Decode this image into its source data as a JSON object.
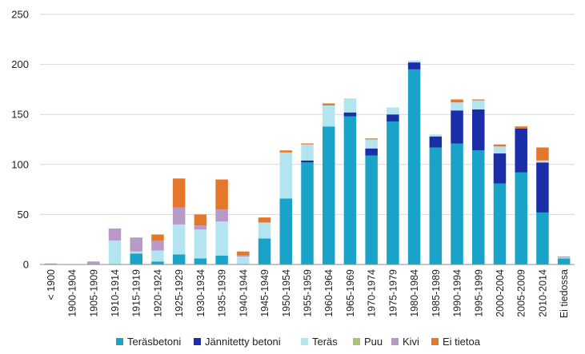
{
  "chart_data": {
    "type": "bar",
    "stacked": true,
    "categories": [
      "< 1900",
      "1900-1904",
      "1905-1909",
      "1910-1914",
      "1915-1919",
      "1920-1924",
      "1925-1929",
      "1930-1934",
      "1935-1939",
      "1940-1944",
      "1945-1949",
      "1950-1954",
      "1955-1959",
      "1960-1964",
      "1965-1969",
      "1970-1974",
      "1975-1979",
      "1980-1984",
      "1985-1989",
      "1990-1994",
      "1995-1999",
      "2000-2004",
      "2005-2009",
      "2010-2014",
      "Ei tiedossa"
    ],
    "series": [
      {
        "name": "Teräsbetoni",
        "color": "#1aa3c8",
        "values": [
          0,
          0,
          0,
          0,
          11,
          3,
          10,
          6,
          9,
          0,
          26,
          66,
          102,
          138,
          148,
          109,
          143,
          195,
          117,
          121,
          114,
          81,
          92,
          52,
          6
        ]
      },
      {
        "name": "Jännitetty betoni",
        "color": "#1a2ea8",
        "values": [
          0,
          0,
          0,
          0,
          0,
          0,
          0,
          0,
          0,
          0,
          0,
          0,
          2,
          0,
          4,
          7,
          7,
          7,
          11,
          33,
          41,
          30,
          44,
          50,
          0
        ]
      },
      {
        "name": "Teräs",
        "color": "#b3e5f1",
        "values": [
          0,
          0,
          0,
          24,
          2,
          11,
          30,
          29,
          34,
          8,
          16,
          46,
          16,
          21,
          14,
          9,
          7,
          2,
          2,
          8,
          9,
          7,
          0,
          2,
          1
        ]
      },
      {
        "name": "Puu",
        "color": "#a9c56f",
        "values": [
          0,
          0,
          0,
          0,
          0,
          0,
          0,
          0,
          0,
          0,
          0,
          0,
          0,
          0,
          0,
          0,
          0,
          0,
          0,
          0,
          0,
          0,
          0,
          0,
          0
        ]
      },
      {
        "name": "Kivi",
        "color": "#b79ac8",
        "values": [
          1,
          0,
          3,
          12,
          14,
          10,
          17,
          4,
          12,
          1,
          0,
          0,
          0,
          0,
          0,
          0,
          0,
          0,
          0,
          0,
          0,
          0,
          0,
          0,
          1
        ]
      },
      {
        "name": "Ei tietoa",
        "color": "#e5772b",
        "values": [
          0,
          0,
          0,
          0,
          0,
          6,
          29,
          11,
          30,
          4,
          5,
          2,
          1,
          2,
          0,
          1,
          0,
          0,
          0,
          3,
          1,
          2,
          2,
          13,
          0
        ]
      }
    ],
    "yticks": [
      0,
      50,
      100,
      150,
      200,
      250
    ],
    "ylim": [
      0,
      250
    ],
    "grid": "horizontal",
    "legend_position": "bottom"
  }
}
